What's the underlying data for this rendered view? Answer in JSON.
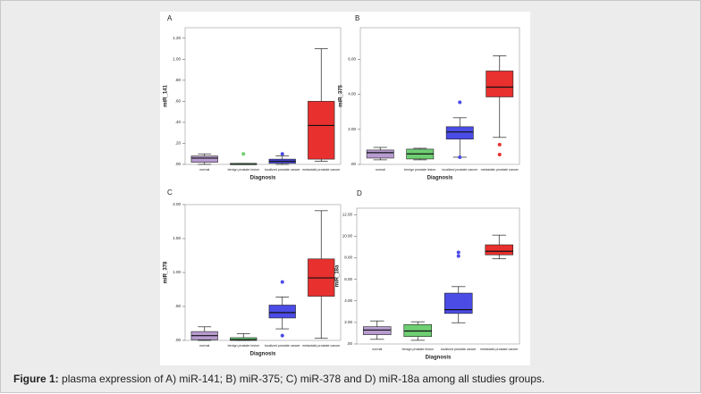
{
  "chart_data": [
    {
      "type": "box",
      "title": "A",
      "ylabel": "miR_141",
      "xlabel": "Diagnosis",
      "categories": [
        "normal",
        "benign prostate lesion",
        "localized prostate cancer",
        "metastatic prostate cancer"
      ],
      "colors": [
        "#b79bd0",
        "#6fcf73",
        "#4b4be6",
        "#e8302e"
      ],
      "boxes": [
        {
          "min": 0.0,
          "q1": 0.02,
          "median": 0.06,
          "q3": 0.08,
          "max": 0.1,
          "outliers": []
        },
        {
          "min": 0.0,
          "q1": 0.0,
          "median": 0.0,
          "q3": 0.01,
          "max": 0.01,
          "outliers": [
            0.1
          ]
        },
        {
          "min": 0.0,
          "q1": 0.01,
          "median": 0.03,
          "q3": 0.05,
          "max": 0.08,
          "outliers": [
            0.1
          ]
        },
        {
          "min": 0.03,
          "q1": 0.05,
          "median": 0.37,
          "q3": 0.6,
          "max": 1.1,
          "outliers": []
        }
      ],
      "ylim": [
        0,
        1.3
      ],
      "yticks": [
        {
          "value": 0,
          "label": ".00"
        },
        {
          "value": 0.2,
          "label": ".20"
        },
        {
          "value": 0.4,
          "label": ".40"
        },
        {
          "value": 0.6,
          "label": ".60"
        },
        {
          "value": 0.8,
          "label": ".80"
        },
        {
          "value": 1.0,
          "label": "1.00"
        },
        {
          "value": 1.2,
          "label": "1.20"
        }
      ]
    },
    {
      "type": "box",
      "title": "B",
      "ylabel": "miR_375",
      "xlabel": "Diagnosis",
      "categories": [
        "normal",
        "benign prostate lesion",
        "localized prostate cancer",
        "metastatic prostate cancer"
      ],
      "colors": [
        "#b79bd0",
        "#6fcf73",
        "#4b4be6",
        "#e8302e"
      ],
      "boxes": [
        {
          "min": 0.26,
          "q1": 0.36,
          "median": 0.67,
          "q3": 0.82,
          "max": 0.97,
          "outliers": []
        },
        {
          "min": 0.26,
          "q1": 0.31,
          "median": 0.6,
          "q3": 0.87,
          "max": 0.92,
          "outliers": []
        },
        {
          "min": 0.41,
          "q1": 1.44,
          "median": 1.85,
          "q3": 2.15,
          "max": 2.66,
          "outliers": [
            3.54,
            0.41
          ]
        },
        {
          "min": 1.54,
          "q1": 3.85,
          "median": 4.41,
          "q3": 5.33,
          "max": 6.2,
          "outliers": [
            1.13,
            0.56
          ]
        }
      ],
      "ylim": [
        0,
        7.8
      ],
      "yticks": [
        {
          "value": 0,
          "label": ".00"
        },
        {
          "value": 2,
          "label": "2.00"
        },
        {
          "value": 4,
          "label": "4.00"
        },
        {
          "value": 6,
          "label": "6.00"
        }
      ]
    },
    {
      "type": "box",
      "title": "C",
      "ylabel": "miR_378",
      "xlabel": "Diagnosis",
      "categories": [
        "normal",
        "benign prostate lesion",
        "localized prostate cancer",
        "metastatic prostate cancer"
      ],
      "colors": [
        "#b79bd0",
        "#6fcf73",
        "#4b4be6",
        "#e8302e"
      ],
      "boxes": [
        {
          "min": 0.0,
          "q1": 0.01,
          "median": 0.07,
          "q3": 0.13,
          "max": 0.2,
          "outliers": []
        },
        {
          "min": 0.0,
          "q1": 0.0,
          "median": 0.01,
          "q3": 0.04,
          "max": 0.1,
          "outliers": []
        },
        {
          "min": 0.17,
          "q1": 0.33,
          "median": 0.41,
          "q3": 0.52,
          "max": 0.64,
          "outliers": [
            0.86,
            0.07
          ]
        },
        {
          "min": 0.03,
          "q1": 0.65,
          "median": 0.92,
          "q3": 1.2,
          "max": 1.91,
          "outliers": []
        }
      ],
      "ylim": [
        0,
        2.0
      ],
      "yticks": [
        {
          "value": 0,
          "label": ".00"
        },
        {
          "value": 0.5,
          "label": ".50"
        },
        {
          "value": 1.0,
          "label": "1.00"
        },
        {
          "value": 1.5,
          "label": "1.50"
        },
        {
          "value": 2.0,
          "label": "2.00"
        }
      ]
    },
    {
      "type": "box",
      "title": "D",
      "ylabel": "miR_18a",
      "xlabel": "Diagnosis",
      "categories": [
        "normal",
        "benign prostate lesion",
        "localized prostate cancer",
        "metastatic prostate cancer"
      ],
      "colors": [
        "#b79bd0",
        "#6fcf73",
        "#4b4be6",
        "#e8302e"
      ],
      "boxes": [
        {
          "min": 0.43,
          "q1": 0.86,
          "median": 1.29,
          "q3": 1.6,
          "max": 2.14,
          "outliers": []
        },
        {
          "min": 0.34,
          "q1": 0.69,
          "median": 1.2,
          "q3": 1.8,
          "max": 2.06,
          "outliers": []
        },
        {
          "min": 1.97,
          "q1": 2.83,
          "median": 3.18,
          "q3": 4.72,
          "max": 5.32,
          "outliers": [
            8.5,
            8.15
          ]
        },
        {
          "min": 7.9,
          "q1": 8.27,
          "median": 8.6,
          "q3": 9.2,
          "max": 10.1,
          "outliers": []
        }
      ],
      "ylim": [
        0,
        12.6
      ],
      "yticks": [
        {
          "value": 0,
          "label": ".00"
        },
        {
          "value": 2,
          "label": "2.00"
        },
        {
          "value": 4,
          "label": "4.00"
        },
        {
          "value": 6,
          "label": "6.00"
        },
        {
          "value": 8,
          "label": "8.00"
        },
        {
          "value": 10,
          "label": "10.00"
        },
        {
          "value": 12,
          "label": "12.00"
        }
      ]
    }
  ],
  "caption": {
    "label": "Figure 1:",
    "text": "plasma expression of A) miR-141; B) miR-375; C) miR-378 and D) miR-18a among all studies groups."
  }
}
